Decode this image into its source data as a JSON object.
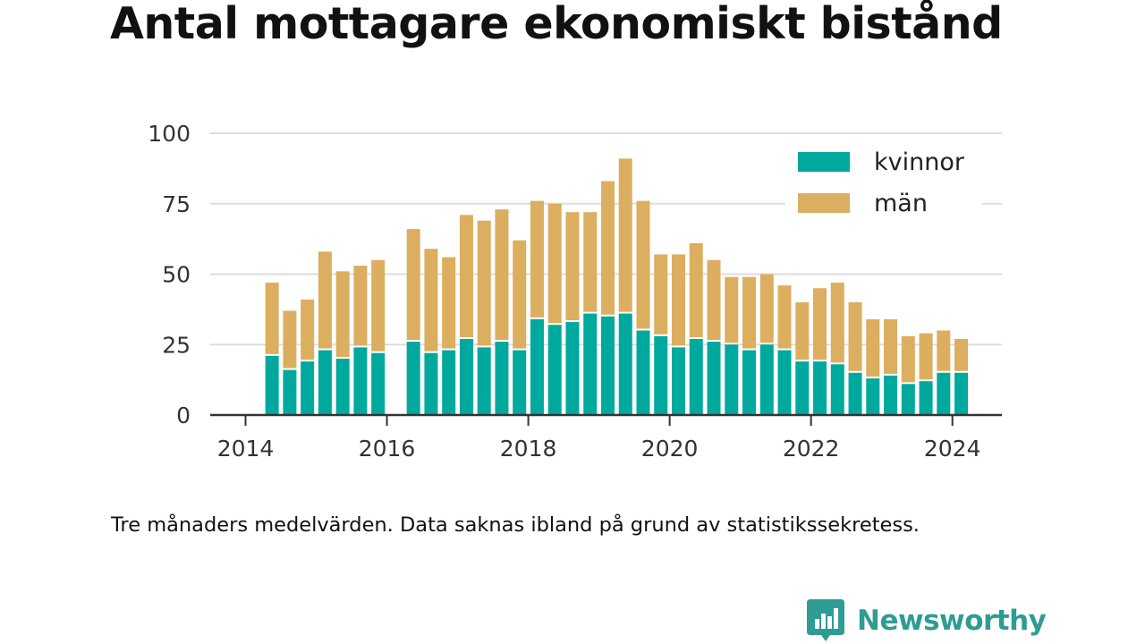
{
  "chart_data": {
    "type": "bar",
    "stacked": true,
    "title": "Antal mottagare ekonomiskt bistånd",
    "note": "Tre månaders medelvärden. Data saknas ibland på grund av statistikssekretess.",
    "xlim": [
      2013.5,
      2024.7
    ],
    "ylim": [
      0,
      100
    ],
    "yticks": [
      0,
      25,
      50,
      75,
      100
    ],
    "ytick_labels": [
      "0",
      "25",
      "50",
      "75",
      "100"
    ],
    "xticks": [
      2014,
      2016,
      2018,
      2020,
      2022,
      2024
    ],
    "xtick_labels": [
      "2014",
      "2016",
      "2018",
      "2020",
      "2022",
      "2024"
    ],
    "grid": "horizontal",
    "legend_position": "top-right",
    "x": [
      2014.375,
      2014.625,
      2014.875,
      2015.125,
      2015.375,
      2015.625,
      2015.875,
      2016.375,
      2016.625,
      2016.875,
      2017.125,
      2017.375,
      2017.625,
      2017.875,
      2018.125,
      2018.375,
      2018.625,
      2018.875,
      2019.125,
      2019.375,
      2019.625,
      2019.875,
      2020.125,
      2020.375,
      2020.625,
      2020.875,
      2021.125,
      2021.375,
      2021.625,
      2021.875,
      2022.125,
      2022.375,
      2022.625,
      2022.875,
      2023.125,
      2023.375,
      2023.625,
      2023.875,
      2024.125
    ],
    "series": [
      {
        "name": "kvinnor",
        "color": "#00a99d",
        "values": [
          21,
          16,
          19,
          23,
          20,
          24,
          22,
          26,
          22,
          23,
          27,
          24,
          26,
          23,
          34,
          32,
          33,
          36,
          35,
          36,
          30,
          28,
          24,
          27,
          26,
          25,
          23,
          25,
          23,
          19,
          19,
          18,
          15,
          13,
          14,
          11,
          12,
          15,
          15
        ]
      },
      {
        "name": "män",
        "color": "#dcae5f",
        "values": [
          26,
          21,
          22,
          35,
          31,
          29,
          33,
          40,
          37,
          33,
          44,
          45,
          47,
          39,
          42,
          43,
          39,
          36,
          48,
          55,
          46,
          29,
          33,
          34,
          29,
          24,
          26,
          25,
          23,
          21,
          26,
          29,
          25,
          21,
          20,
          17,
          17,
          15,
          12
        ]
      }
    ]
  },
  "brand": {
    "name": "Newsworthy",
    "color": "#2f9c94"
  }
}
